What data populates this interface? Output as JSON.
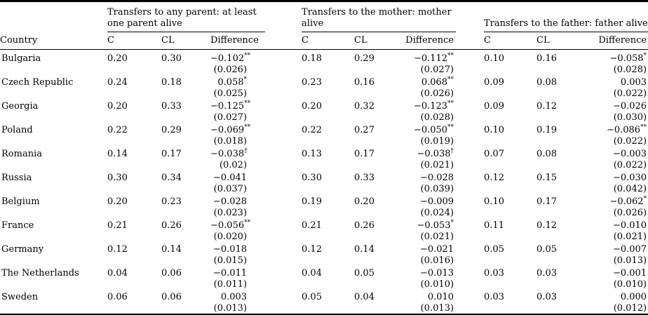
{
  "table": {
    "country_header": "Country",
    "col_headers": [
      "C",
      "CL",
      "Difference"
    ],
    "groups": [
      {
        "label": "Transfers to any parent: at least one parent alive"
      },
      {
        "label": "Transfers to the mother: mother alive"
      },
      {
        "label": "Transfers to the father: father alive"
      }
    ],
    "rows": [
      {
        "country": "Bulgaria",
        "any": {
          "c": "0.20",
          "cl": "0.30",
          "diff": "−0.102",
          "sig": "**",
          "se": "(0.026)"
        },
        "mother": {
          "c": "0.18",
          "cl": "0.29",
          "diff": "−0.112",
          "sig": "**",
          "se": "(0.027)"
        },
        "father": {
          "c": "0.10",
          "cl": "0.16",
          "diff": "−0.058",
          "sig": "*",
          "se": "(0.028)"
        }
      },
      {
        "country": "Czech Republic",
        "any": {
          "c": "0.24",
          "cl": "0.18",
          "diff": "0.058",
          "sig": "*",
          "se": "(0.025)"
        },
        "mother": {
          "c": "0.23",
          "cl": "0.16",
          "diff": "0.068",
          "sig": "**",
          "se": "(0.026)"
        },
        "father": {
          "c": "0.09",
          "cl": "0.08",
          "diff": "0.003",
          "sig": "",
          "se": "(0.022)"
        }
      },
      {
        "country": "Georgia",
        "any": {
          "c": "0.20",
          "cl": "0.33",
          "diff": "−0.125",
          "sig": "**",
          "se": "(0.027)"
        },
        "mother": {
          "c": "0.20",
          "cl": "0.32",
          "diff": "−0.123",
          "sig": "**",
          "se": "(0.028)"
        },
        "father": {
          "c": "0.09",
          "cl": "0.12",
          "diff": "−0.026",
          "sig": "",
          "se": "(0.030)"
        }
      },
      {
        "country": "Poland",
        "any": {
          "c": "0.22",
          "cl": "0.29",
          "diff": "−0.069",
          "sig": "**",
          "se": "(0.018)"
        },
        "mother": {
          "c": "0.22",
          "cl": "0.27",
          "diff": "−0.050",
          "sig": "**",
          "se": "(0.019)"
        },
        "father": {
          "c": "0.10",
          "cl": "0.19",
          "diff": "−0.086",
          "sig": "**",
          "se": "(0.022)"
        }
      },
      {
        "country": "Romania",
        "any": {
          "c": "0.14",
          "cl": "0.17",
          "diff": "−0.038",
          "sig": "†",
          "se": "(0.02)"
        },
        "mother": {
          "c": "0.13",
          "cl": "0.17",
          "diff": "−0.038",
          "sig": "†",
          "se": "(0.021)"
        },
        "father": {
          "c": "0.07",
          "cl": "0.08",
          "diff": "−0.003",
          "sig": "",
          "se": "(0.022)"
        }
      },
      {
        "country": "Russia",
        "any": {
          "c": "0.30",
          "cl": "0.34",
          "diff": "−0.041",
          "sig": "",
          "se": "(0.037)"
        },
        "mother": {
          "c": "0.30",
          "cl": "0.33",
          "diff": "−0.028",
          "sig": "",
          "se": "(0.039)"
        },
        "father": {
          "c": "0.12",
          "cl": "0.15",
          "diff": "−0.030",
          "sig": "",
          "se": "(0.042)"
        }
      },
      {
        "country": "Belgium",
        "any": {
          "c": "0.20",
          "cl": "0.23",
          "diff": "−0.028",
          "sig": "",
          "se": "(0.023)"
        },
        "mother": {
          "c": "0.19",
          "cl": "0.20",
          "diff": "−0.009",
          "sig": "",
          "se": "(0.024)"
        },
        "father": {
          "c": "0.10",
          "cl": "0.17",
          "diff": "−0.062",
          "sig": "*",
          "se": "(0.026)"
        }
      },
      {
        "country": "France",
        "any": {
          "c": "0.21",
          "cl": "0.26",
          "diff": "−0.056",
          "sig": "**",
          "se": "(0.020)"
        },
        "mother": {
          "c": "0.21",
          "cl": "0.26",
          "diff": "−0.053",
          "sig": "*",
          "se": "(0.021)"
        },
        "father": {
          "c": "0.11",
          "cl": "0.12",
          "diff": "−0.010",
          "sig": "",
          "se": "(0.021)"
        }
      },
      {
        "country": "Germany",
        "any": {
          "c": "0.12",
          "cl": "0.14",
          "diff": "−0.018",
          "sig": "",
          "se": "(0.015)"
        },
        "mother": {
          "c": "0.12",
          "cl": "0.14",
          "diff": "−0.021",
          "sig": "",
          "se": "(0.016)"
        },
        "father": {
          "c": "0.05",
          "cl": "0.05",
          "diff": "−0.007",
          "sig": "",
          "se": "(0.013)"
        }
      },
      {
        "country": "The Netherlands",
        "any": {
          "c": "0.04",
          "cl": "0.06",
          "diff": "−0.011",
          "sig": "",
          "se": "(0.011)"
        },
        "mother": {
          "c": "0.04",
          "cl": "0.05",
          "diff": "−0.013",
          "sig": "",
          "se": "(0.010)"
        },
        "father": {
          "c": "0.03",
          "cl": "0.03",
          "diff": "−0.001",
          "sig": "",
          "se": "(0.010)"
        }
      },
      {
        "country": "Sweden",
        "any": {
          "c": "0.06",
          "cl": "0.06",
          "diff": "0.003",
          "sig": "",
          "se": "(0.013)"
        },
        "mother": {
          "c": "0.05",
          "cl": "0.04",
          "diff": "0.010",
          "sig": "",
          "se": "(0.013)"
        },
        "father": {
          "c": "0.03",
          "cl": "0.03",
          "diff": "0.000",
          "sig": "",
          "se": "(0.012)"
        }
      }
    ]
  }
}
